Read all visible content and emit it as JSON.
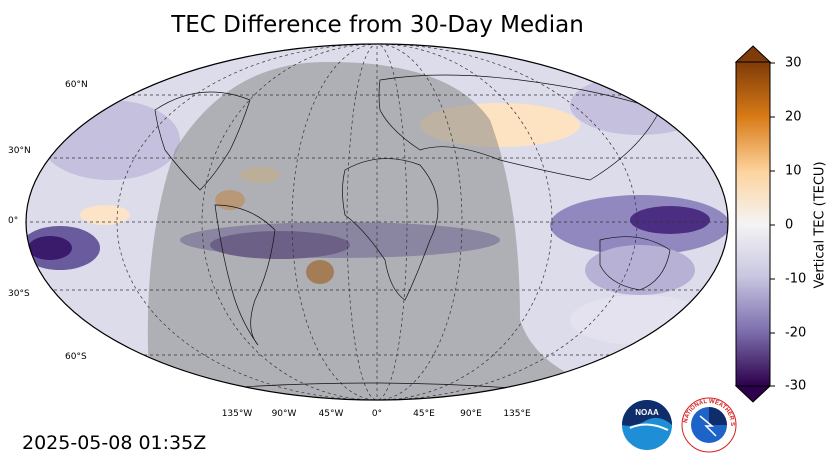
{
  "title": "TEC Difference from 30-Day Median",
  "timestamp": "2025-05-08 01:35Z",
  "colorbar": {
    "label": "Vertical TEC (TECU)",
    "ticks": [
      "30",
      "20",
      "10",
      "0",
      "-10",
      "-20",
      "-30"
    ],
    "min": -30,
    "max": 30,
    "colors": [
      "#7f3b08",
      "#d97b17",
      "#fdd49e",
      "#f4f4f4",
      "#c9c7e1",
      "#7d6fae",
      "#2d004b"
    ]
  },
  "map": {
    "lat_labels": [
      "60°N",
      "30°N",
      "0°",
      "30°S",
      "60°S"
    ],
    "lon_labels": [
      "135°W",
      "90°W",
      "45°W",
      "0°",
      "45°E",
      "90°E",
      "135°E"
    ],
    "night_shade": true,
    "grid": "dashed"
  },
  "logos": {
    "noaa": "NOAA",
    "nws": "NATIONAL WEATHER SERVICE"
  }
}
